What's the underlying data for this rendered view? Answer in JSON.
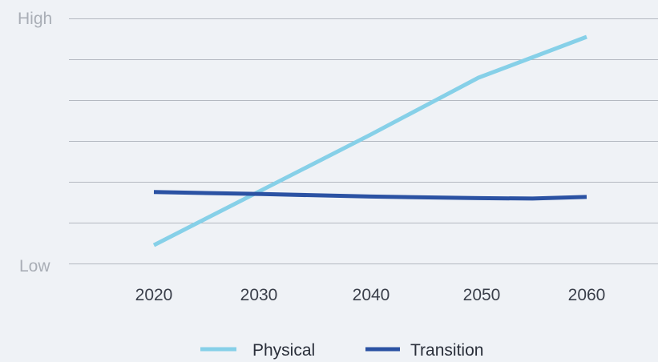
{
  "chart_data": {
    "type": "line",
    "title": "",
    "xlabel": "",
    "ylabel": "",
    "y_axis_labels": {
      "top": "High",
      "bottom": "Low"
    },
    "ylim": [
      0,
      6
    ],
    "grid": true,
    "legend_position": "bottom-center",
    "x": [
      2020,
      2030,
      2040,
      2050,
      2060
    ],
    "tick_labels": [
      "2020",
      "2030",
      "2040",
      "2050",
      "2060"
    ],
    "series": [
      {
        "name": "Physical",
        "color": "#86d0e8",
        "x": [
          2020,
          2030,
          2040,
          2050,
          2060
        ],
        "values": [
          0.45,
          1.8,
          3.15,
          4.55,
          5.55
        ]
      },
      {
        "name": "Transition",
        "color": "#2b52a3",
        "x": [
          2020,
          2030,
          2040,
          2050,
          2055,
          2060
        ],
        "values": [
          1.75,
          1.7,
          1.64,
          1.6,
          1.59,
          1.63
        ]
      }
    ]
  }
}
